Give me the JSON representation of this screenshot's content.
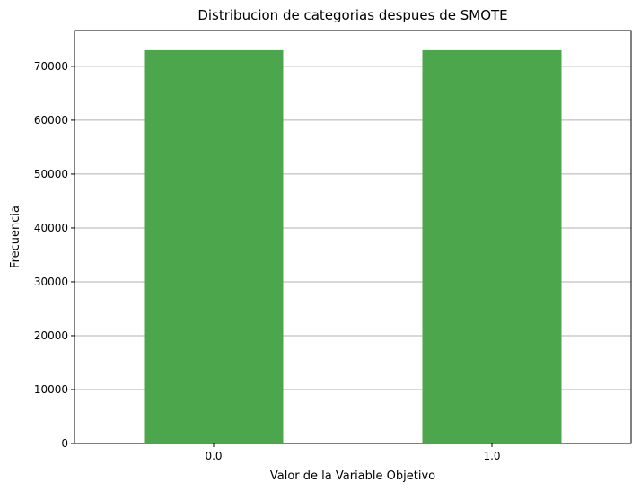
{
  "chart_data": {
    "type": "bar",
    "title": "Distribucion de categorias despues de SMOTE",
    "xlabel": "Valor de la Variable Objetivo",
    "ylabel": "Frecuencia",
    "categories": [
      "0.0",
      "1.0"
    ],
    "values": [
      73000,
      73000
    ],
    "ylim": [
      0,
      76650
    ],
    "yticks": [
      0,
      10000,
      20000,
      30000,
      40000,
      50000,
      60000,
      70000
    ],
    "grid": "y",
    "bar_color": "#4ca64c"
  }
}
